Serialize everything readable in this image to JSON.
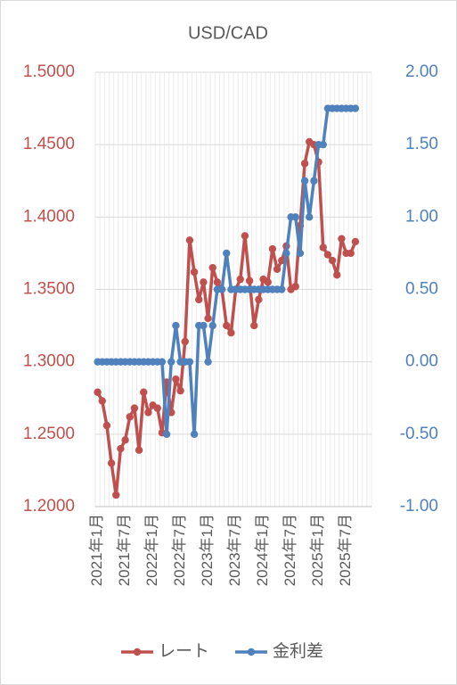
{
  "chart_data": {
    "type": "line",
    "title": "USD/CAD",
    "categories": [
      "2021年1月",
      null,
      null,
      null,
      null,
      null,
      "2021年7月",
      null,
      null,
      null,
      null,
      null,
      "2022年1月",
      null,
      null,
      null,
      null,
      null,
      "2022年7月",
      null,
      null,
      null,
      null,
      null,
      "2023年1月",
      null,
      null,
      null,
      null,
      null,
      "2023年7月",
      null,
      null,
      null,
      null,
      null,
      "2024年1月",
      null,
      null,
      null,
      null,
      null,
      "2024年7月",
      null,
      null,
      null,
      null,
      null,
      "2025年1月",
      null,
      null,
      null,
      null,
      null,
      "2025年7月",
      null,
      null,
      null,
      null,
      null
    ],
    "series": [
      {
        "name": "レート",
        "color": "#c0504d",
        "axis": "y",
        "values": [
          1.279,
          1.273,
          1.256,
          1.23,
          1.208,
          1.24,
          1.246,
          1.262,
          1.268,
          1.239,
          1.279,
          1.265,
          1.27,
          1.268,
          1.251,
          1.286,
          1.265,
          1.288,
          1.28,
          1.314,
          1.384,
          1.362,
          1.343,
          1.355,
          1.33,
          1.365,
          1.355,
          1.35,
          1.325,
          1.32,
          1.35,
          1.357,
          1.387,
          1.356,
          1.325,
          1.343,
          1.357,
          1.355,
          1.378,
          1.364,
          1.37,
          1.38,
          1.35,
          1.352,
          1.394,
          1.437,
          1.452,
          1.45,
          1.438,
          1.379,
          1.374,
          1.37,
          1.36,
          1.385,
          1.375,
          1.375,
          1.383,
          null,
          null,
          null
        ]
      },
      {
        "name": "金利差",
        "color": "#4f81bd",
        "axis": "y2",
        "values": [
          0,
          0,
          0,
          0,
          0,
          0,
          0,
          0,
          0,
          0,
          0,
          0,
          0,
          0,
          0,
          -0.5,
          0,
          0.25,
          0,
          0,
          0,
          -0.5,
          0.25,
          0.25,
          0,
          0.25,
          0.5,
          0.5,
          0.75,
          0.5,
          0.5,
          0.5,
          0.5,
          0.5,
          0.5,
          0.5,
          0.5,
          0.5,
          0.5,
          0.5,
          0.5,
          0.75,
          1.0,
          1.0,
          0.75,
          1.25,
          1.0,
          1.25,
          1.5,
          1.5,
          1.75,
          1.75,
          1.75,
          1.75,
          1.75,
          1.75,
          1.75,
          null,
          null,
          null
        ]
      }
    ],
    "ylim": [
      1.2,
      1.5
    ],
    "yticks": [
      {
        "value": 1.2,
        "label": "1.2000"
      },
      {
        "value": 1.25,
        "label": "1.2500"
      },
      {
        "value": 1.3,
        "label": "1.3000"
      },
      {
        "value": 1.35,
        "label": "1.3500"
      },
      {
        "value": 1.4,
        "label": "1.4000"
      },
      {
        "value": 1.45,
        "label": "1.4500"
      },
      {
        "value": 1.5,
        "label": "1.5000"
      }
    ],
    "y2lim": [
      -1,
      2
    ],
    "y2ticks": [
      {
        "value": -1,
        "label": "-1.00"
      },
      {
        "value": -0.5,
        "label": "-0.50"
      },
      {
        "value": 0,
        "label": "0.00"
      },
      {
        "value": 0.5,
        "label": "0.50"
      },
      {
        "value": 1,
        "label": "1.00"
      },
      {
        "value": 1.5,
        "label": "1.50"
      },
      {
        "value": 2,
        "label": "2.00"
      }
    ],
    "grid": true,
    "legend": "bottom"
  }
}
